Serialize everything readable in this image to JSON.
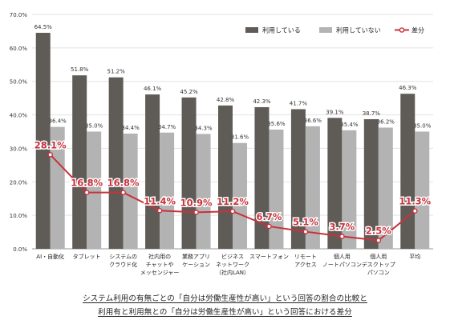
{
  "chart_data": {
    "type": "bar",
    "categories": [
      [
        "AI・自動化"
      ],
      [
        "タブレット"
      ],
      [
        "システムの",
        "クラウド化"
      ],
      [
        "社内用の",
        "チャットや",
        "メッセンジャー"
      ],
      [
        "業務アプリ",
        "ケーション"
      ],
      [
        "ビジネス",
        "ネットワーク",
        "（社内LAN）"
      ],
      [
        "スマートフォン"
      ],
      [
        "リモート",
        "アクセス"
      ],
      [
        "個人用",
        "ノートパソコン"
      ],
      [
        "個人用",
        "デスクトップ",
        "パソコン"
      ],
      [
        "平均"
      ]
    ],
    "series": [
      {
        "name": "利用している",
        "type": "bar",
        "color": "#5f5c57",
        "values": [
          64.5,
          51.8,
          51.2,
          46.1,
          45.2,
          42.8,
          42.3,
          41.7,
          39.1,
          38.7,
          46.3
        ],
        "labels": [
          "64.5%",
          "51.8%",
          "51.2%",
          "46.1%",
          "45.2%",
          "42.8%",
          "42.3%",
          "41.7%",
          "39.1%",
          "38.7%",
          "46.3%"
        ]
      },
      {
        "name": "利用していない",
        "type": "bar",
        "color": "#b3b3b3",
        "values": [
          36.4,
          35.0,
          34.4,
          34.7,
          34.3,
          31.6,
          35.6,
          36.6,
          35.4,
          36.2,
          35.0
        ],
        "labels": [
          "36.4%",
          "35.0%",
          "34.4%",
          "34.7%",
          "34.3%",
          "31.6%",
          "35.6%",
          "36.6%",
          "35.4%",
          "36.2%",
          "35.0%"
        ]
      },
      {
        "name": "差分",
        "type": "line",
        "color": "#c8323c",
        "values": [
          28.1,
          16.8,
          16.8,
          11.4,
          10.9,
          11.2,
          6.7,
          5.1,
          3.7,
          2.5,
          11.3
        ],
        "labels": [
          "28.1%",
          "16.8%",
          "16.8%",
          "11.4%",
          "10.9%",
          "11.2%",
          "6.7%",
          "5.1%",
          "3.7%",
          "2.5%",
          "11.3%"
        ]
      }
    ],
    "y_ticks": [
      "0.0%",
      "10.0%",
      "20.0%",
      "30.0%",
      "40.0%",
      "50.0%",
      "60.0%",
      "70.0%"
    ],
    "ylim": [
      0,
      70
    ],
    "grid": true,
    "legend_position": "top-right"
  },
  "caption": {
    "line1": "システム利用の有無ごとの「自分は労働生産性が高い」という回答の割合の比較と",
    "line2": "利用有と利用無との「自分は労働生産性が高い」という回答における差分"
  }
}
